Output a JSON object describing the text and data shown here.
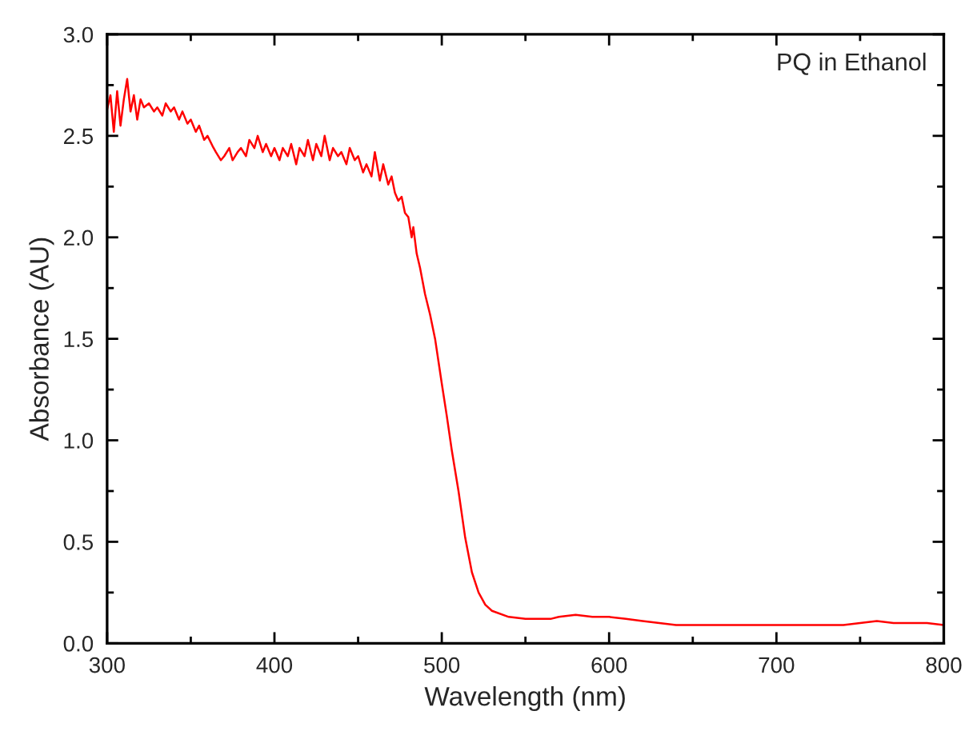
{
  "chart_data": {
    "type": "line",
    "xlabel": "Wavelength (nm)",
    "ylabel": "Absorbance (AU)",
    "annotations": [
      "PQ in Ethanol"
    ],
    "xlim": [
      300,
      800
    ],
    "xticks": [
      300,
      400,
      500,
      600,
      700,
      800
    ],
    "ylim": [
      0.0,
      3.0
    ],
    "yticks": [
      {
        "value": 0,
        "label": "0.0"
      },
      0.5,
      {
        "value": 1,
        "label": "1.0"
      },
      1.5,
      {
        "value": 2,
        "label": "2.0"
      },
      2.5,
      {
        "value": 3,
        "label": "3.0"
      }
    ],
    "grid": false,
    "marker": "none",
    "line_style": "solid",
    "series": [
      {
        "color": "#ff0000",
        "x": [
          300,
          302,
          304,
          306,
          308,
          310,
          312,
          314,
          316,
          318,
          320,
          322,
          325,
          328,
          330,
          333,
          335,
          338,
          340,
          343,
          345,
          348,
          350,
          353,
          355,
          358,
          360,
          363,
          365,
          368,
          370,
          373,
          375,
          378,
          380,
          383,
          385,
          388,
          390,
          393,
          395,
          398,
          400,
          403,
          405,
          408,
          410,
          413,
          415,
          418,
          420,
          423,
          425,
          428,
          430,
          433,
          435,
          438,
          440,
          443,
          445,
          448,
          450,
          453,
          455,
          458,
          460,
          463,
          465,
          468,
          470,
          472,
          474,
          476,
          478,
          480,
          482,
          483,
          485,
          487,
          490,
          493,
          496,
          500,
          503,
          506,
          510,
          514,
          518,
          522,
          526,
          530,
          540,
          550,
          560,
          565,
          570,
          580,
          590,
          600,
          610,
          620,
          630,
          640,
          650,
          660,
          680,
          700,
          720,
          740,
          750,
          760,
          770,
          780,
          790,
          800
        ],
        "values": [
          2.63,
          2.7,
          2.52,
          2.72,
          2.55,
          2.68,
          2.78,
          2.62,
          2.7,
          2.58,
          2.68,
          2.64,
          2.66,
          2.62,
          2.64,
          2.6,
          2.66,
          2.62,
          2.64,
          2.58,
          2.62,
          2.56,
          2.58,
          2.52,
          2.55,
          2.48,
          2.5,
          2.45,
          2.42,
          2.38,
          2.4,
          2.44,
          2.38,
          2.42,
          2.44,
          2.4,
          2.48,
          2.44,
          2.5,
          2.42,
          2.46,
          2.4,
          2.44,
          2.38,
          2.44,
          2.4,
          2.46,
          2.36,
          2.44,
          2.4,
          2.48,
          2.38,
          2.46,
          2.4,
          2.5,
          2.38,
          2.44,
          2.4,
          2.42,
          2.36,
          2.44,
          2.38,
          2.4,
          2.32,
          2.36,
          2.3,
          2.42,
          2.28,
          2.36,
          2.26,
          2.3,
          2.22,
          2.18,
          2.2,
          2.12,
          2.1,
          2.0,
          2.05,
          1.92,
          1.85,
          1.72,
          1.62,
          1.5,
          1.28,
          1.12,
          0.95,
          0.75,
          0.52,
          0.35,
          0.25,
          0.19,
          0.16,
          0.13,
          0.12,
          0.12,
          0.12,
          0.13,
          0.14,
          0.13,
          0.13,
          0.12,
          0.11,
          0.1,
          0.09,
          0.09,
          0.09,
          0.09,
          0.09,
          0.09,
          0.09,
          0.1,
          0.11,
          0.1,
          0.1,
          0.1,
          0.09
        ]
      }
    ]
  }
}
